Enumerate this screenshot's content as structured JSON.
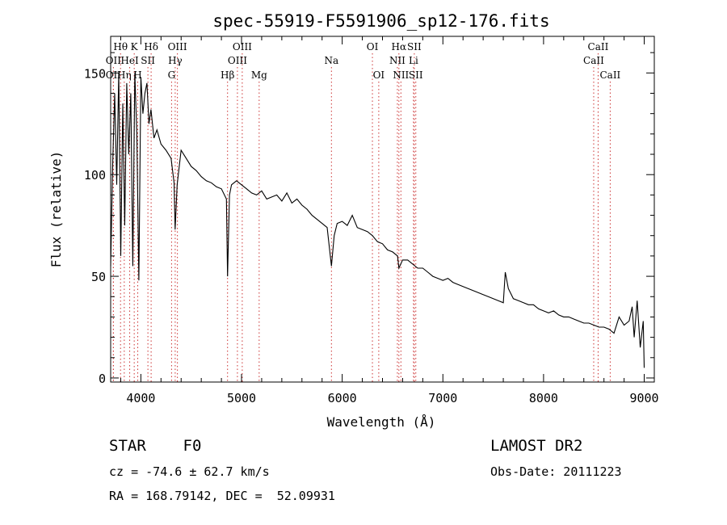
{
  "chart_data": {
    "type": "line",
    "title": "spec-55919-F5591906_sp12-176.fits",
    "xlabel": "Wavelength (Å)",
    "ylabel": "Flux (relative)",
    "xlim": [
      3700,
      9100
    ],
    "ylim": [
      -2,
      168
    ],
    "xticks": [
      4000,
      5000,
      6000,
      7000,
      8000,
      9000
    ],
    "yticks": [
      0,
      50,
      100,
      150
    ],
    "grid": false,
    "series": [
      {
        "x": [
          3700,
          3720,
          3740,
          3760,
          3780,
          3800,
          3820,
          3840,
          3860,
          3880,
          3900,
          3920,
          3940,
          3960,
          3980,
          4000,
          4020,
          4040,
          4060,
          4080,
          4100,
          4130,
          4160,
          4200,
          4250,
          4300,
          4330,
          4340,
          4360,
          4400,
          4450,
          4500,
          4550,
          4600,
          4650,
          4700,
          4750,
          4800,
          4850,
          4861,
          4880,
          4900,
          4950,
          5000,
          5050,
          5100,
          5150,
          5200,
          5250,
          5300,
          5350,
          5400,
          5450,
          5500,
          5550,
          5600,
          5650,
          5700,
          5750,
          5800,
          5850,
          5893,
          5920,
          5950,
          6000,
          6050,
          6100,
          6150,
          6200,
          6250,
          6300,
          6350,
          6400,
          6450,
          6500,
          6550,
          6563,
          6600,
          6650,
          6700,
          6750,
          6800,
          6850,
          6900,
          6950,
          7000,
          7050,
          7100,
          7150,
          7200,
          7250,
          7300,
          7350,
          7400,
          7450,
          7500,
          7550,
          7600,
          7620,
          7650,
          7700,
          7750,
          7800,
          7850,
          7900,
          7950,
          8000,
          8050,
          8100,
          8150,
          8200,
          8250,
          8300,
          8350,
          8400,
          8450,
          8500,
          8550,
          8600,
          8650,
          8700,
          8750,
          8800,
          8850,
          8880,
          8900,
          8930,
          8960,
          8990,
          9000
        ],
        "y": [
          55,
          105,
          140,
          95,
          150,
          60,
          135,
          75,
          145,
          110,
          140,
          55,
          150,
          120,
          48,
          148,
          130,
          140,
          145,
          125,
          132,
          118,
          122,
          115,
          112,
          108,
          96,
          73,
          95,
          112,
          108,
          104,
          102,
          99,
          97,
          96,
          94,
          93,
          88,
          50,
          90,
          95,
          97,
          95,
          93,
          91,
          90,
          92,
          88,
          89,
          90,
          87,
          91,
          86,
          88,
          85,
          83,
          80,
          78,
          76,
          74,
          55,
          70,
          76,
          77,
          75,
          80,
          74,
          73,
          72,
          70,
          67,
          66,
          63,
          62,
          60,
          54,
          58,
          58,
          56,
          54,
          54,
          52,
          50,
          49,
          48,
          49,
          47,
          46,
          45,
          44,
          43,
          42,
          41,
          40,
          39,
          38,
          37,
          52,
          44,
          39,
          38,
          37,
          36,
          36,
          34,
          33,
          32,
          33,
          31,
          30,
          30,
          29,
          28,
          27,
          27,
          26,
          25,
          25,
          24,
          22,
          30,
          26,
          28,
          35,
          20,
          38,
          15,
          28,
          5
        ]
      }
    ],
    "line_markers": [
      {
        "label": "Hθ",
        "x": 3798,
        "row": 1
      },
      {
        "label": "OII",
        "x": 3727,
        "row": 2
      },
      {
        "label": "Hη",
        "x": 3835,
        "row": 3
      },
      {
        "label": "OII",
        "x": 3727,
        "row": 3
      },
      {
        "label": "K",
        "x": 3934,
        "row": 1
      },
      {
        "label": "H",
        "x": 3969,
        "row": 3
      },
      {
        "label": "HeI",
        "x": 3889,
        "row": 2
      },
      {
        "label": "SII",
        "x": 4070,
        "row": 2
      },
      {
        "label": "Hδ",
        "x": 4102,
        "row": 1
      },
      {
        "label": "OIII",
        "x": 4363,
        "row": 1
      },
      {
        "label": "Hγ",
        "x": 4341,
        "row": 2
      },
      {
        "label": "G",
        "x": 4305,
        "row": 3
      },
      {
        "label": "Hβ",
        "x": 4861,
        "row": 3
      },
      {
        "label": "OIII",
        "x": 5007,
        "row": 1
      },
      {
        "label": "OIII",
        "x": 4959,
        "row": 2
      },
      {
        "label": "Mg",
        "x": 5175,
        "row": 3
      },
      {
        "label": "Na",
        "x": 5893,
        "row": 2
      },
      {
        "label": "OI",
        "x": 6300,
        "row": 1
      },
      {
        "label": "OI",
        "x": 6363,
        "row": 3
      },
      {
        "label": "Hα",
        "x": 6563,
        "row": 1
      },
      {
        "label": "SII",
        "x": 6716,
        "row": 1
      },
      {
        "label": "NII",
        "x": 6548,
        "row": 2
      },
      {
        "label": "Li",
        "x": 6708,
        "row": 2
      },
      {
        "label": "NII",
        "x": 6583,
        "row": 3
      },
      {
        "label": "SII",
        "x": 6731,
        "row": 3
      },
      {
        "label": "CaII",
        "x": 8542,
        "row": 1
      },
      {
        "label": "CaII",
        "x": 8498,
        "row": 2
      },
      {
        "label": "CaII",
        "x": 8662,
        "row": 3
      }
    ]
  },
  "footer": {
    "object_class": "STAR    F0",
    "survey": "LAMOST DR2",
    "redshift": "cz = -74.6 ± 62.7 km/s",
    "obs_date": "Obs-Date: 20111223",
    "coords": "RA = 168.79142, DEC =  52.09931"
  },
  "colors": {
    "spectrum": "#000000",
    "marker_lines": "#cc3333"
  }
}
